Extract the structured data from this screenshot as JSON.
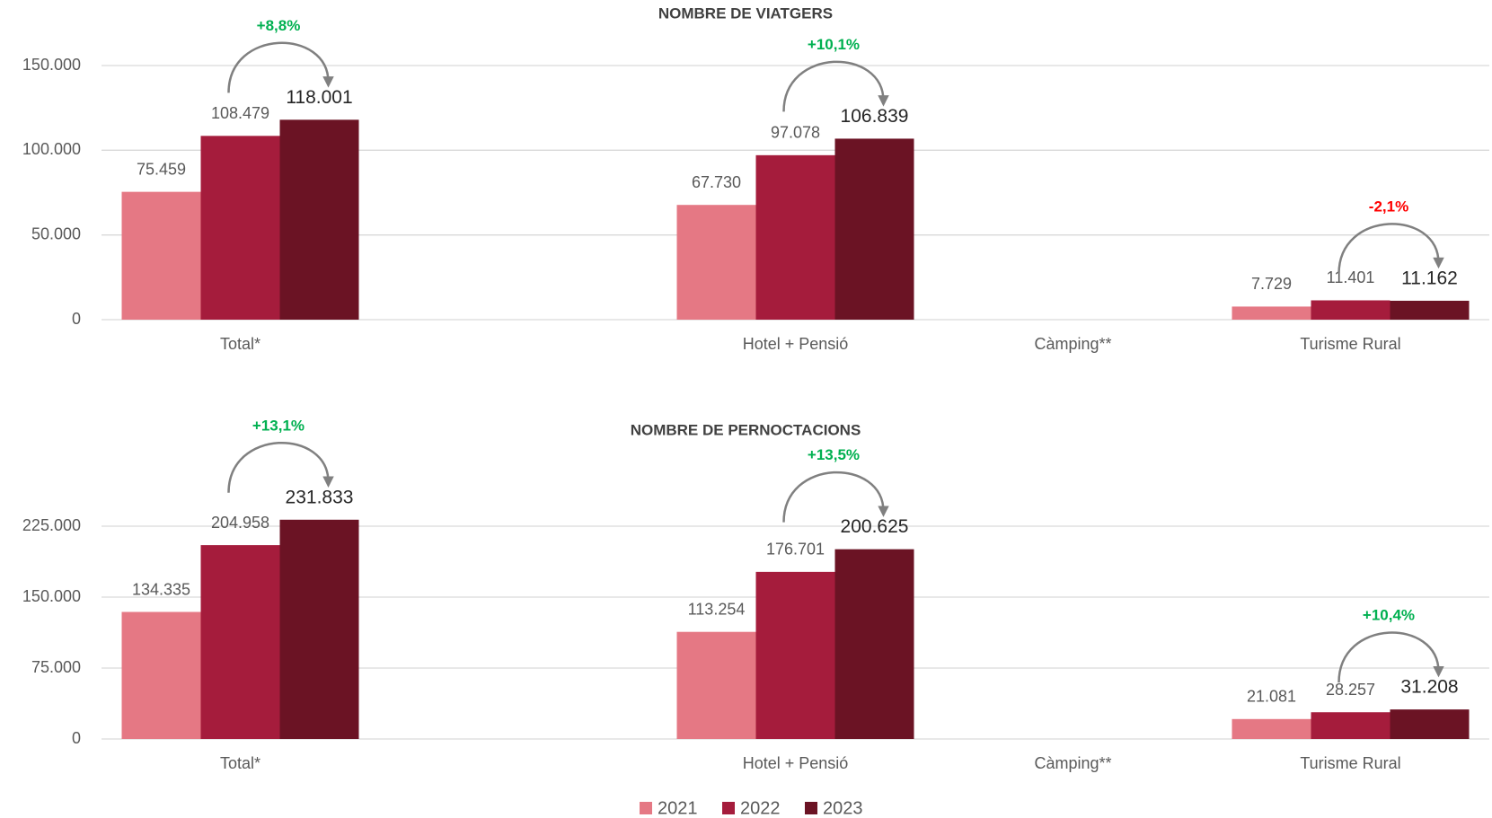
{
  "chart_data": [
    {
      "type": "bar",
      "title": "NOMBRE DE VIATGERS",
      "categories": [
        "Total*",
        null,
        "Hotel + Pensió",
        "Càmping**",
        "Turisme Rural"
      ],
      "series": [
        {
          "name": "2021",
          "color": "#e57884",
          "values": [
            75459,
            null,
            67730,
            null,
            7729
          ],
          "value_labels": [
            "75.459",
            null,
            "67.730",
            null,
            "7.729"
          ]
        },
        {
          "name": "2022",
          "color": "#a51c3c",
          "values": [
            108479,
            null,
            97078,
            null,
            11401
          ],
          "value_labels": [
            "108.479",
            null,
            "97.078",
            null,
            "11.401"
          ]
        },
        {
          "name": "2023",
          "color": "#6b1324",
          "values": [
            118001,
            null,
            106839,
            null,
            11162
          ],
          "value_labels": [
            "118.001",
            null,
            "106.839",
            null,
            "11.162"
          ]
        }
      ],
      "annotations": [
        "+8,8%",
        null,
        "+10,1%",
        null,
        "-2,1%"
      ],
      "annotation_colors": [
        "#00b050",
        null,
        "#00b050",
        null,
        "#ff0000"
      ],
      "ylim": [
        0,
        150000
      ],
      "yticks": [
        0,
        {
          "value": 50000,
          "label": "50.000"
        },
        {
          "value": 100000,
          "label": "100.000"
        },
        {
          "value": 150000,
          "label": "150.000"
        }
      ],
      "grid": true
    },
    {
      "type": "bar",
      "title": "NOMBRE DE PERNOCTACIONS",
      "categories": [
        "Total*",
        null,
        "Hotel + Pensió",
        "Càmping**",
        "Turisme Rural"
      ],
      "series": [
        {
          "color": "#e57884",
          "values": [
            134335,
            null,
            113254,
            null,
            21081
          ],
          "value_labels": [
            "134.335",
            null,
            "113.254",
            null,
            "21.081"
          ]
        },
        {
          "color": "#a51c3c",
          "values": [
            204958,
            null,
            176701,
            null,
            28257
          ],
          "value_labels": [
            "204.958",
            null,
            "176.701",
            null,
            "28.257"
          ]
        },
        {
          "color": "#6b1324",
          "values": [
            231833,
            null,
            200625,
            null,
            31208
          ],
          "value_labels": [
            "231.833",
            null,
            "200.625",
            null,
            "31.208"
          ]
        }
      ],
      "annotations": [
        "+13,1%",
        null,
        "+13,5%",
        null,
        "+10,4%"
      ],
      "annotation_colors": [
        "#00b050",
        null,
        "#00b050",
        null,
        "#00b050"
      ],
      "ylim": [
        0,
        225000
      ],
      "yticks": [
        0,
        {
          "value": 75000,
          "label": "75.000"
        },
        {
          "value": 150000,
          "label": "150.000"
        },
        {
          "value": 225000,
          "label": "225.000"
        }
      ],
      "grid": true
    }
  ],
  "legend": "bottom"
}
